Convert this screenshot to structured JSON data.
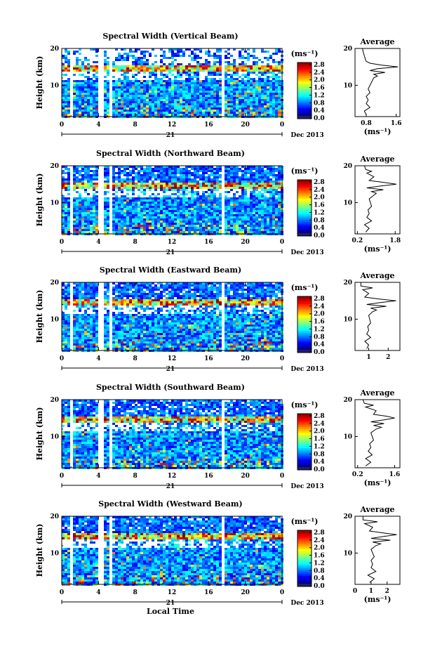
{
  "chart_data": [
    {
      "type": "heatmap",
      "title": "Spectral Width (Vertical Beam)",
      "ylabel": "Height (km)",
      "x_ticks": [
        "0",
        "4",
        "8",
        "12",
        "16",
        "20",
        "0"
      ],
      "y_ticks": [
        "20",
        "10"
      ],
      "date_day": "21",
      "date_label": "Dec 2013",
      "colorbar": {
        "unit": "(ms⁻¹)",
        "ticks": [
          "2.8",
          "2.4",
          "2.0",
          "1.6",
          "1.2",
          "0.8",
          "0.4",
          "0.0"
        ],
        "range": [
          0,
          2.8
        ]
      },
      "xlim": [
        0,
        24
      ],
      "ylim": [
        1.5,
        20
      ],
      "profile": {
        "title": "Average",
        "xlabel": "(ms⁻¹)",
        "x_ticks": [
          "0.8",
          "1.6"
        ],
        "xlim": [
          0.5,
          1.7
        ],
        "y_ticks": [
          "20",
          "10"
        ],
        "height": [
          2,
          3,
          4,
          5,
          6,
          7,
          8,
          9,
          10,
          11,
          12,
          12.5,
          13,
          13.5,
          14,
          14.5,
          15,
          15.5,
          16,
          16.5,
          17,
          18,
          19,
          20
        ],
        "values": [
          0.8,
          0.75,
          0.9,
          0.8,
          0.85,
          0.8,
          0.9,
          0.85,
          0.9,
          0.95,
          1.0,
          1.1,
          1.0,
          1.3,
          0.9,
          1.1,
          1.65,
          1.2,
          0.9,
          0.8,
          0.78,
          0.75,
          0.72,
          0.7
        ]
      }
    },
    {
      "type": "heatmap",
      "title": "Spectral Width (Northward Beam)",
      "ylabel": "Height (km)",
      "x_ticks": [
        "0",
        "4",
        "8",
        "12",
        "16",
        "20",
        "0"
      ],
      "y_ticks": [
        "20",
        "10"
      ],
      "date_day": "21",
      "date_label": "Dec 2013",
      "colorbar": {
        "unit": "(ms⁻¹)",
        "ticks": [
          "2.8",
          "2.4",
          "2.0",
          "1.6",
          "1.2",
          "0.8",
          "0.4",
          "0.0"
        ],
        "range": [
          0,
          2.8
        ]
      },
      "xlim": [
        0,
        24
      ],
      "ylim": [
        1.5,
        20
      ],
      "profile": {
        "title": "Average",
        "xlabel": "(ms⁻¹)",
        "x_ticks": [
          "0.2",
          "1.8"
        ],
        "xlim": [
          0.1,
          2.0
        ],
        "y_ticks": [
          "20",
          "10"
        ],
        "height": [
          2,
          3,
          4,
          5,
          6,
          7,
          8,
          9,
          10,
          11,
          12,
          12.5,
          13,
          13.5,
          14,
          14.5,
          15,
          15.5,
          16,
          17,
          18,
          18.5,
          19,
          20
        ],
        "values": [
          0.55,
          0.7,
          0.5,
          0.8,
          0.6,
          0.7,
          0.65,
          0.8,
          0.75,
          0.7,
          0.9,
          1.0,
          0.8,
          1.3,
          0.6,
          1.2,
          1.85,
          1.3,
          0.7,
          0.9,
          0.6,
          0.8,
          0.55,
          0.5
        ]
      }
    },
    {
      "type": "heatmap",
      "title": "Spectral Width (Eastward Beam)",
      "ylabel": "Height (km)",
      "x_ticks": [
        "0",
        "4",
        "8",
        "12",
        "16",
        "20",
        "0"
      ],
      "y_ticks": [
        "20",
        "10"
      ],
      "date_day": "21",
      "date_label": "Dec 2013",
      "colorbar": {
        "unit": "(ms⁻¹)",
        "ticks": [
          "2.8",
          "2.4",
          "2.0",
          "1.6",
          "1.2",
          "0.8",
          "0.4",
          "0.0"
        ],
        "range": [
          0,
          2.8
        ]
      },
      "xlim": [
        0,
        24
      ],
      "ylim": [
        1.5,
        20
      ],
      "profile": {
        "title": "Average",
        "xlabel": "",
        "x_ticks": [
          "1",
          "2"
        ],
        "xlim": [
          0.3,
          2.6
        ],
        "y_ticks": [
          "20",
          "10"
        ],
        "height": [
          2,
          3,
          4,
          5,
          6,
          7,
          8,
          9,
          10,
          11,
          12,
          12.5,
          13,
          13.5,
          14,
          14.5,
          15,
          15.5,
          16,
          17,
          18,
          18.5,
          19,
          20
        ],
        "values": [
          0.9,
          1.0,
          0.8,
          1.1,
          0.9,
          1.0,
          0.95,
          1.1,
          1.05,
          1.0,
          1.2,
          1.4,
          1.1,
          1.9,
          0.9,
          1.6,
          2.4,
          1.5,
          0.8,
          1.0,
          0.7,
          1.2,
          0.6,
          0.6
        ]
      }
    },
    {
      "type": "heatmap",
      "title": "Spectral Width (Southward Beam)",
      "ylabel": "Height (km)",
      "x_ticks": [
        "0",
        "4",
        "8",
        "12",
        "16",
        "20",
        "0"
      ],
      "y_ticks": [
        "20",
        "10"
      ],
      "date_day": "21",
      "date_label": "Dec 2013",
      "colorbar": {
        "unit": "(ms⁻¹)",
        "ticks": [
          "2.8",
          "2.4",
          "2.0",
          "1.6",
          "1.2",
          "0.8",
          "0.4",
          "0.0"
        ],
        "range": [
          0,
          2.8
        ]
      },
      "xlim": [
        0,
        24
      ],
      "ylim": [
        1.5,
        20
      ],
      "profile": {
        "title": "Average",
        "xlabel": "(ms⁻¹)",
        "x_ticks": [
          "0.2",
          "1.6"
        ],
        "xlim": [
          0.1,
          1.8
        ],
        "y_ticks": [
          "20",
          "10"
        ],
        "height": [
          2,
          3,
          4,
          5,
          6,
          7,
          8,
          9,
          10,
          11,
          12,
          12.5,
          13,
          13.5,
          14,
          14.5,
          15,
          15.5,
          16,
          17,
          18,
          18.5,
          19,
          20
        ],
        "values": [
          0.5,
          0.7,
          0.5,
          0.75,
          0.6,
          0.7,
          0.65,
          0.8,
          0.75,
          0.7,
          0.9,
          1.1,
          0.8,
          1.2,
          0.7,
          1.2,
          1.6,
          1.3,
          0.8,
          0.9,
          0.5,
          0.8,
          0.45,
          0.4
        ]
      }
    },
    {
      "type": "heatmap",
      "title": "Spectral Width (Westward Beam)",
      "ylabel": "Height (km)",
      "x_ticks": [
        "0",
        "4",
        "8",
        "12",
        "16",
        "20",
        "0"
      ],
      "y_ticks": [
        "20",
        "10"
      ],
      "date_day": "21",
      "date_label": "Dec 2013",
      "xlabel": "Local Time",
      "colorbar": {
        "unit": "(ms⁻¹)",
        "ticks": [
          "2.8",
          "2.4",
          "2.0",
          "1.6",
          "1.2",
          "0.8",
          "0.4",
          "0.0"
        ],
        "range": [
          0,
          2.8
        ]
      },
      "xlim": [
        0,
        24
      ],
      "ylim": [
        1.5,
        20
      ],
      "profile": {
        "title": "Average",
        "xlabel": "(ms⁻¹)",
        "x_ticks": [
          "0",
          "1",
          "2"
        ],
        "xlim": [
          0,
          2.8
        ],
        "y_ticks": [
          "20",
          "10"
        ],
        "height": [
          2,
          3,
          4,
          5,
          6,
          7,
          8,
          9,
          10,
          11,
          12,
          12.5,
          13,
          13.5,
          14,
          14.5,
          15,
          15.5,
          16,
          17,
          18,
          18.5,
          19,
          20
        ],
        "values": [
          0.9,
          1.2,
          0.8,
          1.3,
          1.0,
          1.1,
          1.0,
          1.2,
          1.1,
          1.0,
          1.3,
          1.6,
          1.1,
          2.2,
          1.0,
          1.8,
          2.6,
          1.7,
          0.9,
          1.1,
          0.6,
          1.4,
          0.5,
          0.5
        ]
      }
    }
  ]
}
